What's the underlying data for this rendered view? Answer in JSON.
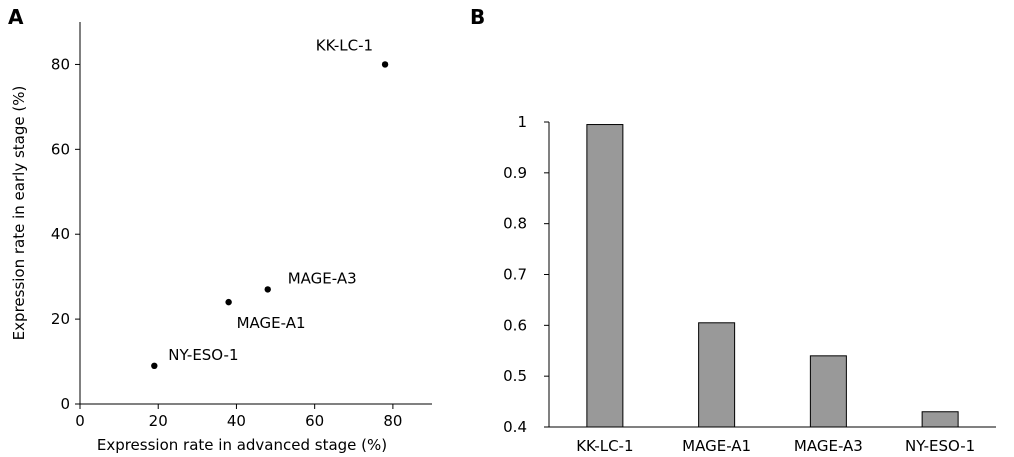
{
  "chart_data": [
    {
      "panel": "A",
      "type": "scatter",
      "xlabel": "Expression rate in advanced stage (%)",
      "ylabel": "Expression rate in early stage (%)",
      "xlim": [
        0,
        90
      ],
      "ylim": [
        0,
        90
      ],
      "xticks": [
        0,
        20,
        40,
        60,
        80
      ],
      "yticks": [
        0,
        20,
        40,
        60,
        80
      ],
      "points": [
        {
          "label": "KK-LC-1",
          "x": 78,
          "y": 80
        },
        {
          "label": "MAGE-A3",
          "x": 48,
          "y": 27
        },
        {
          "label": "MAGE-A1",
          "x": 38,
          "y": 24
        },
        {
          "label": "NY-ESO-1",
          "x": 19,
          "y": 9
        }
      ]
    },
    {
      "panel": "B",
      "type": "bar",
      "categories": [
        "KK-LC-1",
        "MAGE-A1",
        "MAGE-A3",
        "NY-ESO-1"
      ],
      "values": [
        0.995,
        0.605,
        0.54,
        0.43
      ],
      "ylim": [
        0.4,
        1.0
      ],
      "yticks": [
        "0.4",
        "0.5",
        "0.6",
        "0.7",
        "0.8",
        "0.9",
        "1"
      ],
      "bar_color": "#999999"
    }
  ]
}
